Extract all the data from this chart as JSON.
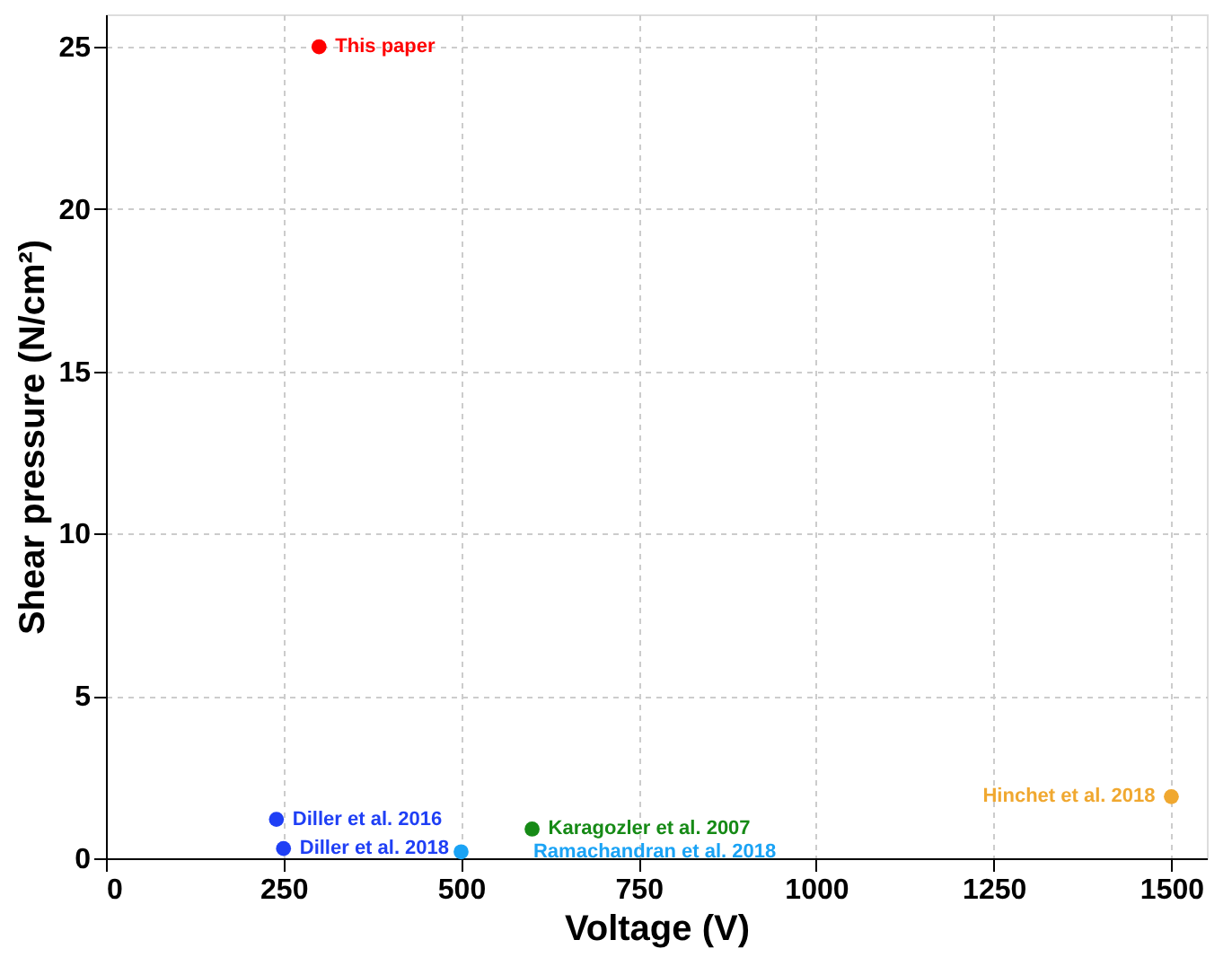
{
  "chart_data": {
    "type": "scatter",
    "xlabel": "Voltage (V)",
    "ylabel": "Shear pressure (N/cm²)",
    "xlim": [
      0,
      1550
    ],
    "xticks": [
      0,
      250,
      500,
      750,
      1000,
      1250,
      1500
    ],
    "ylim": [
      0,
      26
    ],
    "yticks": [
      0,
      5,
      10,
      15,
      20,
      25
    ],
    "grid": true,
    "marker": "circle",
    "series": [
      {
        "name": "This paper",
        "color": "#ff0000",
        "x": [
          300
        ],
        "values": [
          25
        ]
      },
      {
        "name": "Diller et al. 2016",
        "color": "#1f3ff5",
        "x": [
          240
        ],
        "values": [
          1.2
        ]
      },
      {
        "name": "Diller et al. 2018",
        "color": "#1f3ff5",
        "x": [
          250
        ],
        "values": [
          0.3
        ]
      },
      {
        "name": "Ramachandran et al. 2018",
        "color": "#1aa3f5",
        "x": [
          500
        ],
        "values": [
          0.2
        ]
      },
      {
        "name": "Karagozler et al. 2007",
        "color": "#168a16",
        "x": [
          600
        ],
        "values": [
          0.9
        ]
      },
      {
        "name": "Hinchet et al. 2018",
        "color": "#f0a830",
        "x": [
          1500
        ],
        "values": [
          1.9
        ]
      }
    ]
  }
}
